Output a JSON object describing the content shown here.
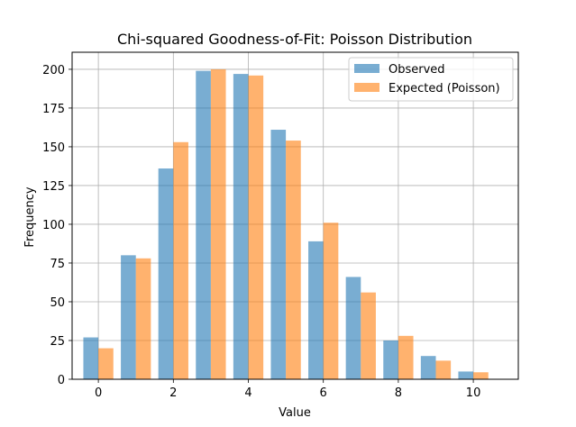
{
  "chart_data": {
    "type": "bar",
    "title": "Chi-squared Goodness-of-Fit: Poisson Distribution",
    "xlabel": "Value",
    "ylabel": "Frequency",
    "x": [
      0,
      1,
      2,
      3,
      4,
      5,
      6,
      7,
      8,
      9,
      10
    ],
    "series": [
      {
        "name": "Observed",
        "color": "#1f77b4",
        "values": [
          27,
          80,
          136,
          199,
          197,
          161,
          89,
          66,
          25,
          15,
          5
        ]
      },
      {
        "name": "Expected (Poisson)",
        "color": "#ff7f0e",
        "values": [
          20,
          78,
          153,
          200,
          196,
          154,
          101,
          56,
          28,
          12,
          4.5
        ]
      }
    ],
    "xlim": [
      -0.7,
      11.2
    ],
    "ylim": [
      0,
      211
    ],
    "xticks": [
      0,
      2,
      4,
      6,
      8,
      10
    ],
    "yticks": [
      0,
      25,
      50,
      75,
      100,
      125,
      150,
      175,
      200
    ],
    "grid": true,
    "legend_position": "top-right"
  }
}
